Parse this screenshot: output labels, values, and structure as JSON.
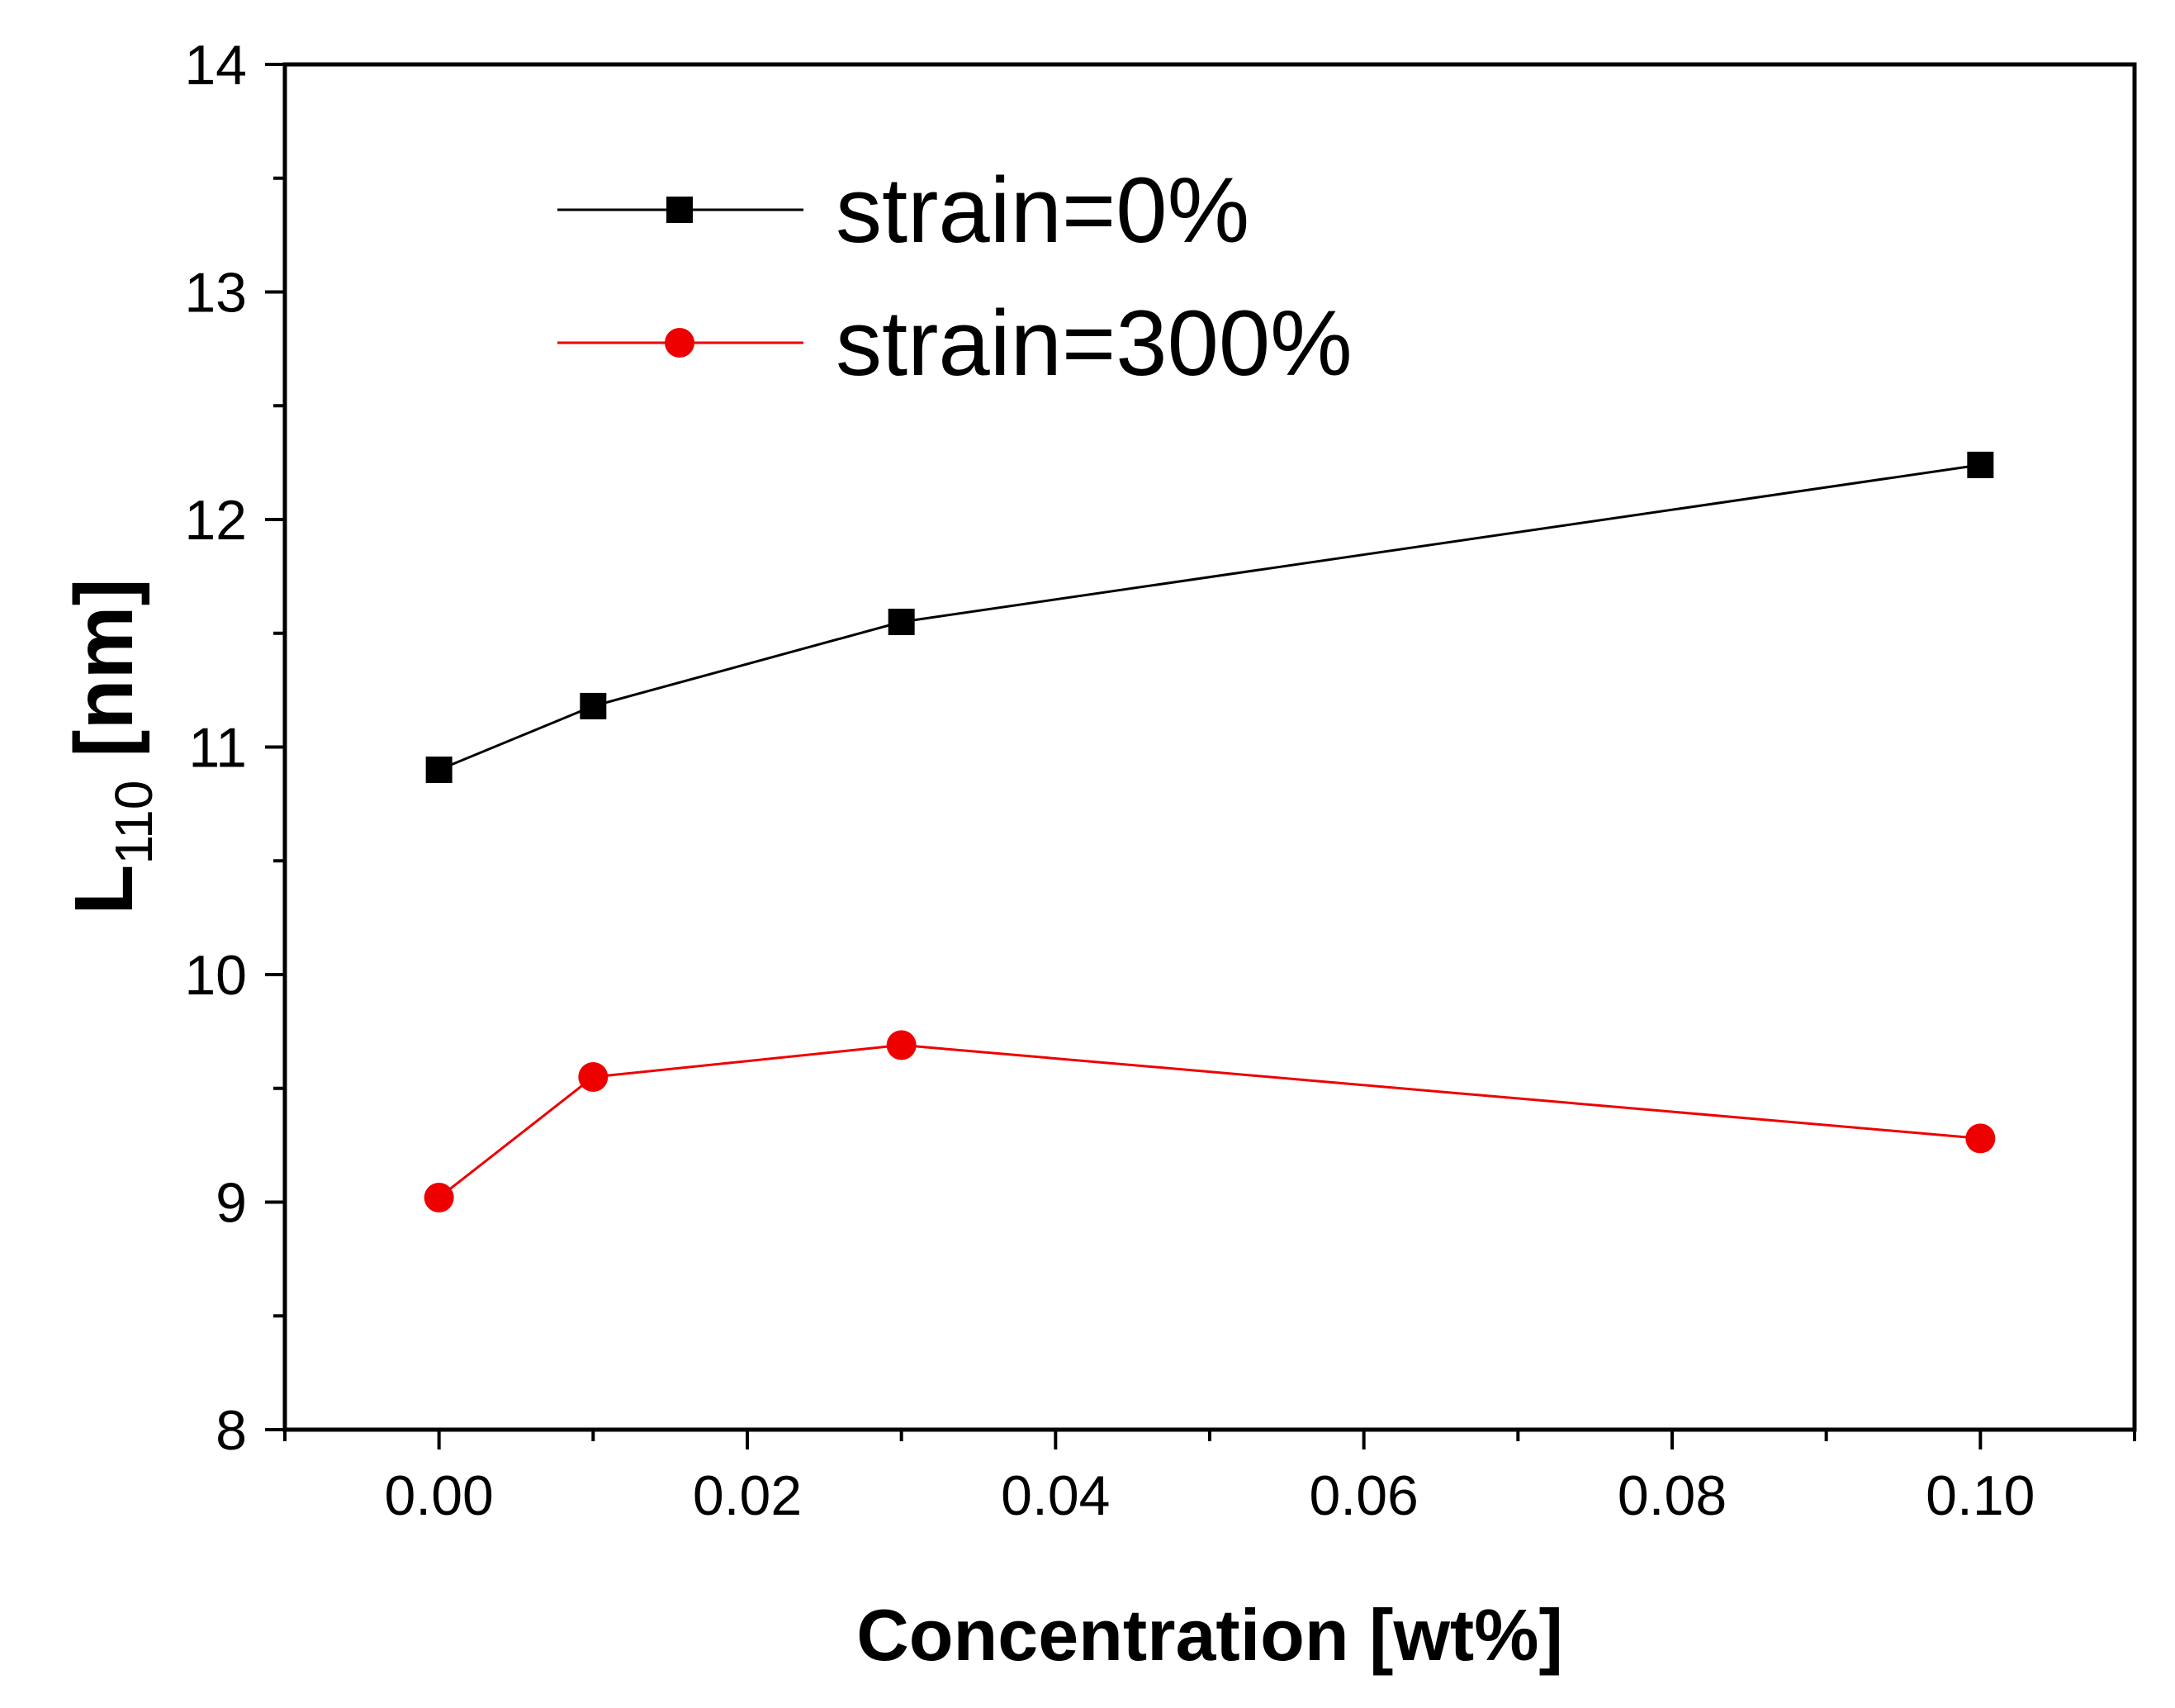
{
  "chart_data": {
    "type": "line",
    "title": "",
    "xlabel": "Concentration [wt%]",
    "ylabel": {
      "base": "L",
      "subscript": "110",
      "suffix": " [nm]"
    },
    "xlim": [
      -0.01,
      0.11
    ],
    "ylim": [
      8,
      14
    ],
    "x_ticks": [
      "0.00",
      "0.02",
      "0.04",
      "0.06",
      "0.08",
      "0.10"
    ],
    "x_tick_values": [
      0.0,
      0.02,
      0.04,
      0.06,
      0.08,
      0.1
    ],
    "y_ticks": [
      "8",
      "9",
      "10",
      "11",
      "12",
      "13",
      "14"
    ],
    "y_tick_values": [
      8,
      9,
      10,
      11,
      12,
      13,
      14
    ],
    "grid": false,
    "legend_position": "top-center",
    "series": [
      {
        "name": "strain=0%",
        "marker": "square",
        "color": "#000000",
        "x": [
          0.0,
          0.01,
          0.03,
          0.1
        ],
        "y": [
          10.9,
          11.18,
          11.55,
          12.24
        ]
      },
      {
        "name": "strain=300%",
        "marker": "circle",
        "color": "#ee0000",
        "x": [
          0.0,
          0.01,
          0.03,
          0.1
        ],
        "y": [
          9.02,
          9.55,
          9.69,
          9.28
        ]
      }
    ]
  }
}
